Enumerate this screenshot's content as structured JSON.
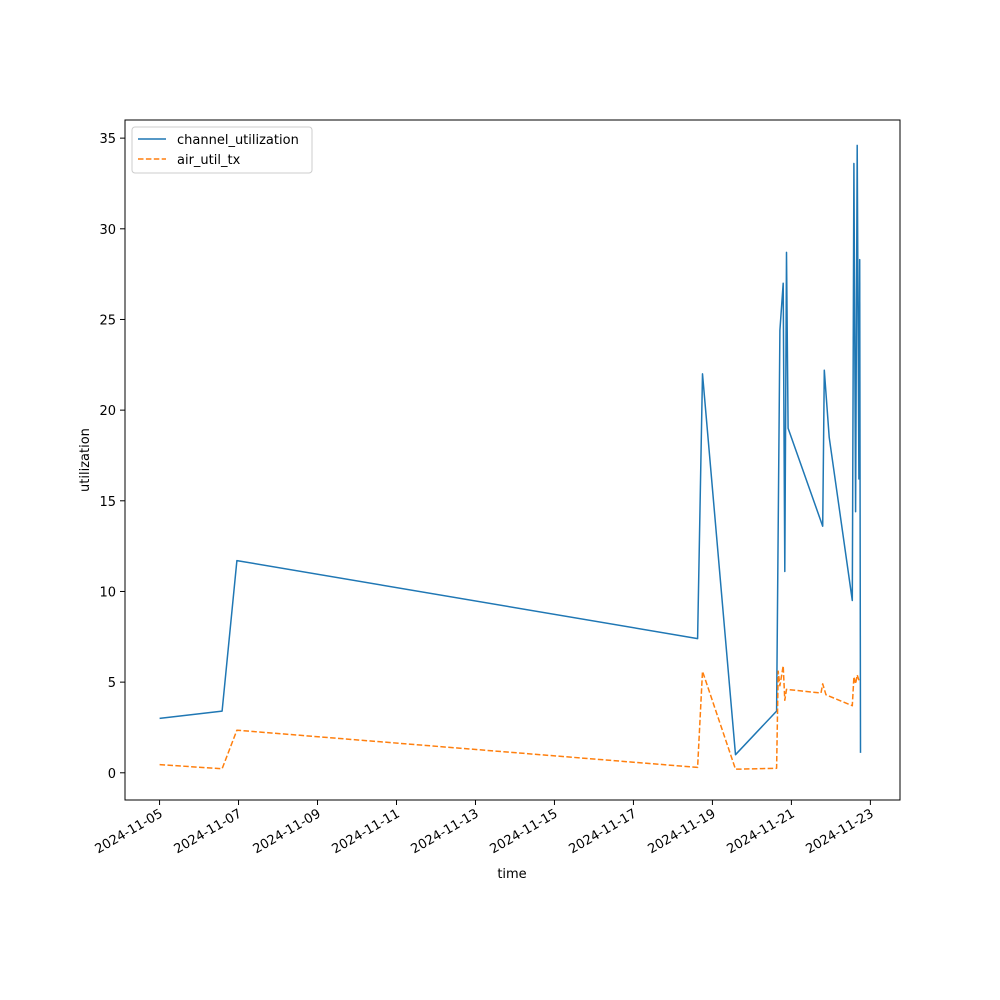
{
  "chart_data": {
    "type": "line",
    "title": "",
    "xlabel": "time",
    "ylabel": "utilization",
    "xlim": [
      "2024-11-04 03:00",
      "2024-11-23 18:00"
    ],
    "ylim": [
      -1.5,
      36.0
    ],
    "grid": false,
    "legend_position": "top-left",
    "x_ticks": [
      "2024-11-05",
      "2024-11-07",
      "2024-11-09",
      "2024-11-11",
      "2024-11-13",
      "2024-11-15",
      "2024-11-17",
      "2024-11-19",
      "2024-11-21",
      "2024-11-23"
    ],
    "y_ticks": [
      0,
      5,
      10,
      15,
      20,
      25,
      30,
      35
    ],
    "series": [
      {
        "name": "channel_utilization",
        "color": "#1f77b4",
        "style": "solid",
        "points": [
          [
            "2024-11-05 00:00",
            3.0
          ],
          [
            "2024-11-06 14:00",
            3.4
          ],
          [
            "2024-11-06 23:00",
            11.7
          ],
          [
            "2024-11-18 15:00",
            7.4
          ],
          [
            "2024-11-18 18:00",
            22.0
          ],
          [
            "2024-11-19 14:00",
            1.0
          ],
          [
            "2024-11-20 15:00",
            3.4
          ],
          [
            "2024-11-20 17:00",
            24.4
          ],
          [
            "2024-11-20 19:00",
            27.0
          ],
          [
            "2024-11-20 20:00",
            11.1
          ],
          [
            "2024-11-20 21:00",
            28.7
          ],
          [
            "2024-11-20 22:00",
            19.0
          ],
          [
            "2024-11-21 19:00",
            13.6
          ],
          [
            "2024-11-21 20:00",
            22.2
          ],
          [
            "2024-11-21 23:00",
            18.5
          ],
          [
            "2024-11-22 13:00",
            9.5
          ],
          [
            "2024-11-22 14:00",
            33.6
          ],
          [
            "2024-11-22 15:00",
            14.4
          ],
          [
            "2024-11-22 16:00",
            34.6
          ],
          [
            "2024-11-22 17:00",
            16.2
          ],
          [
            "2024-11-22 17:30",
            28.3
          ],
          [
            "2024-11-22 18:00",
            1.1
          ]
        ]
      },
      {
        "name": "air_util_tx",
        "color": "#ff7f0e",
        "style": "dashed",
        "points": [
          [
            "2024-11-05 00:00",
            0.45
          ],
          [
            "2024-11-06 14:00",
            0.22
          ],
          [
            "2024-11-06 23:00",
            2.35
          ],
          [
            "2024-11-18 15:00",
            0.3
          ],
          [
            "2024-11-18 18:00",
            5.6
          ],
          [
            "2024-11-19 14:00",
            0.2
          ],
          [
            "2024-11-20 15:00",
            0.25
          ],
          [
            "2024-11-20 16:00",
            5.6
          ],
          [
            "2024-11-20 17:00",
            4.8
          ],
          [
            "2024-11-20 19:00",
            5.9
          ],
          [
            "2024-11-20 20:00",
            4.0
          ],
          [
            "2024-11-20 21:00",
            4.6
          ],
          [
            "2024-11-21 18:00",
            4.4
          ],
          [
            "2024-11-21 19:00",
            4.9
          ],
          [
            "2024-11-21 21:00",
            4.3
          ],
          [
            "2024-11-22 13:00",
            3.7
          ],
          [
            "2024-11-22 14:00",
            5.3
          ],
          [
            "2024-11-22 15:00",
            4.9
          ],
          [
            "2024-11-22 16:00",
            5.4
          ],
          [
            "2024-11-22 17:00",
            5.1
          ]
        ]
      }
    ]
  }
}
